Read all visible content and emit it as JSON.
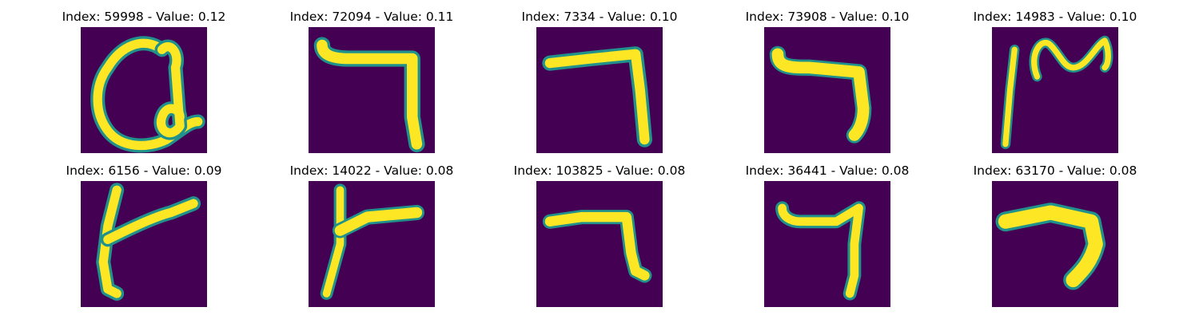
{
  "figure": {
    "background": "#ffffff",
    "colormap": "viridis",
    "colors": {
      "low": "#440154",
      "mid": "#21918c",
      "high": "#fde725"
    },
    "panels": [
      {
        "title": "Index: 59998 - Value: 0.12",
        "glyph": "loop-character-icon"
      },
      {
        "title": "Index: 72094 - Value: 0.11",
        "glyph": "hook-character-icon"
      },
      {
        "title": "Index: 7334 - Value: 0.10",
        "glyph": "hook-character-icon"
      },
      {
        "title": "Index: 73908 - Value: 0.10",
        "glyph": "hook-character-icon"
      },
      {
        "title": "Index: 14983 - Value: 0.10",
        "glyph": "wave-character-icon"
      },
      {
        "title": "Index: 6156 - Value: 0.09",
        "glyph": "tee-character-icon"
      },
      {
        "title": "Index: 14022 - Value: 0.08",
        "glyph": "tee-character-icon"
      },
      {
        "title": "Index: 103825 - Value: 0.08",
        "glyph": "hook-character-icon"
      },
      {
        "title": "Index: 36441 - Value: 0.08",
        "glyph": "hook-character-icon"
      },
      {
        "title": "Index: 63170 - Value: 0.08",
        "glyph": "hook-character-icon"
      }
    ]
  }
}
